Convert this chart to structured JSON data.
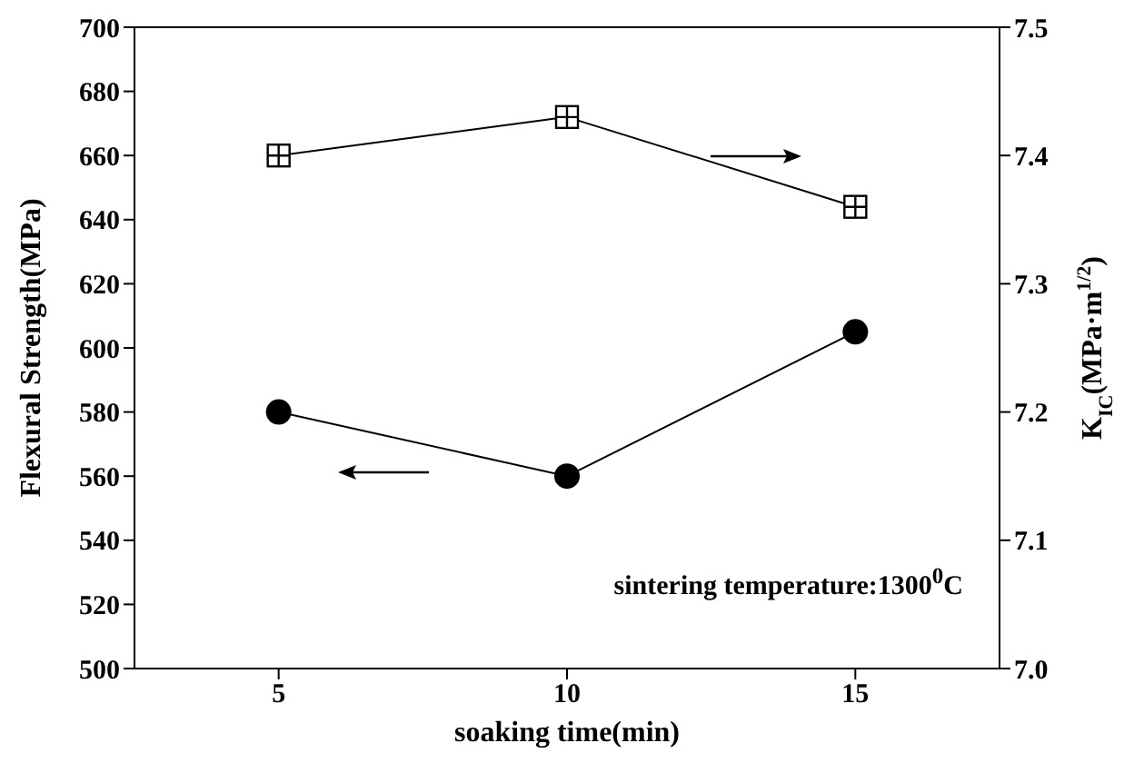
{
  "chart_data": {
    "type": "line",
    "xlabel": "soaking time(min)",
    "ylabel": "Flexural Strength(MPa)",
    "y2label": "K$_{IC}$(MPa·m$^{1/2}$)",
    "x": [
      5,
      10,
      15
    ],
    "series": [
      {
        "color": "#000000",
        "values": [
          580,
          560,
          605
        ],
        "marker": "circle"
      },
      {
        "color": "#000000",
        "values": [
          7.4,
          7.43,
          7.36
        ],
        "marker": "square",
        "axis": "y2"
      }
    ],
    "xlim": [
      2.5,
      17.5
    ],
    "xticks": [
      5,
      10,
      15
    ],
    "ylim": [
      500,
      700
    ],
    "yticks": [
      500,
      520,
      540,
      560,
      580,
      600,
      620,
      640,
      660,
      680,
      700
    ],
    "y2lim": [
      7.0,
      7.5
    ],
    "y2ticks": [
      {
        "value": 7.0,
        "label": "7.0"
      },
      {
        "value": 7.1,
        "label": "7.1"
      },
      {
        "value": 7.2,
        "label": "7.2"
      },
      {
        "value": 7.3,
        "label": "7.3"
      },
      {
        "value": 7.4,
        "label": "7.4"
      },
      {
        "value": 7.5,
        "label": "7.5"
      }
    ],
    "annotations": [
      "sintering temperature:1300$^{0}$C"
    ]
  }
}
